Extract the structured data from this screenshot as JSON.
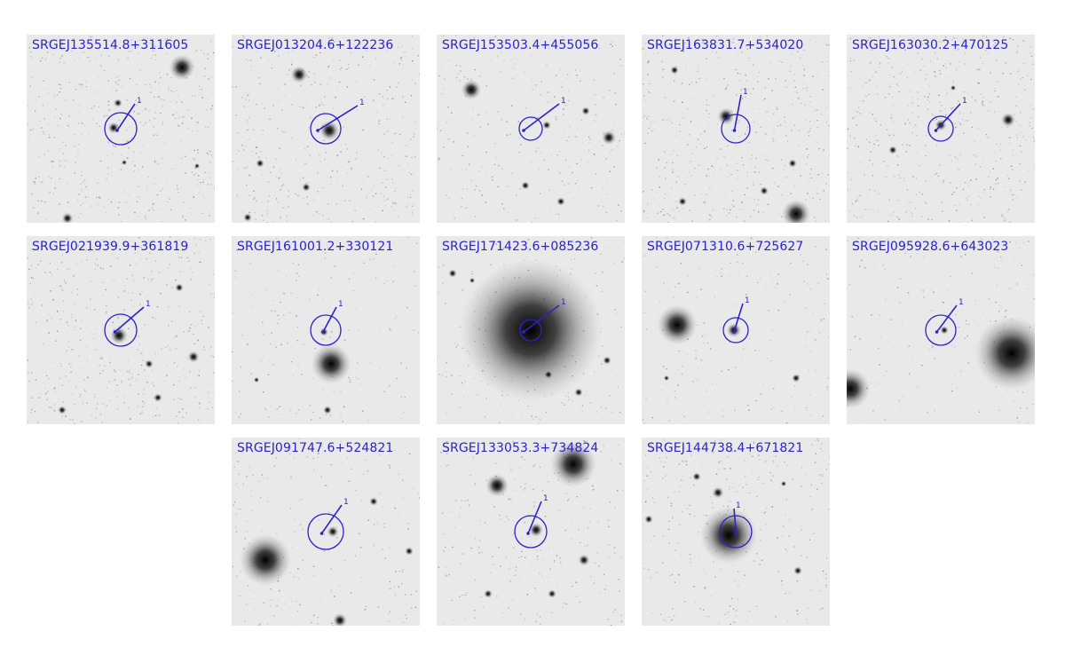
{
  "panels": [
    {
      "name": "SRGEJ135514.8+311605",
      "marker": "1"
    },
    {
      "name": "SRGEJ013204.6+122236",
      "marker": "1"
    },
    {
      "name": "SRGEJ153503.4+455056",
      "marker": "1"
    },
    {
      "name": "SRGEJ163831.7+534020",
      "marker": "1"
    },
    {
      "name": "SRGEJ163030.2+470125",
      "marker": "1"
    },
    {
      "name": "SRGEJ021939.9+361819",
      "marker": "1"
    },
    {
      "name": "SRGEJ161001.2+330121",
      "marker": "1"
    },
    {
      "name": "SRGEJ171423.6+085236",
      "marker": "1"
    },
    {
      "name": "SRGEJ071310.6+725627",
      "marker": "1"
    },
    {
      "name": "SRGEJ095928.6+643023",
      "marker": "1"
    },
    {
      "name": "SRGEJ091747.6+524821",
      "marker": "1"
    },
    {
      "name": "SRGEJ133053.3+734824",
      "marker": "1"
    },
    {
      "name": "SRGEJ144738.4+671821",
      "marker": "1"
    }
  ],
  "colors": {
    "annotation": "#2b22c9",
    "sky": "#e9e9e9",
    "source": "#111111"
  }
}
